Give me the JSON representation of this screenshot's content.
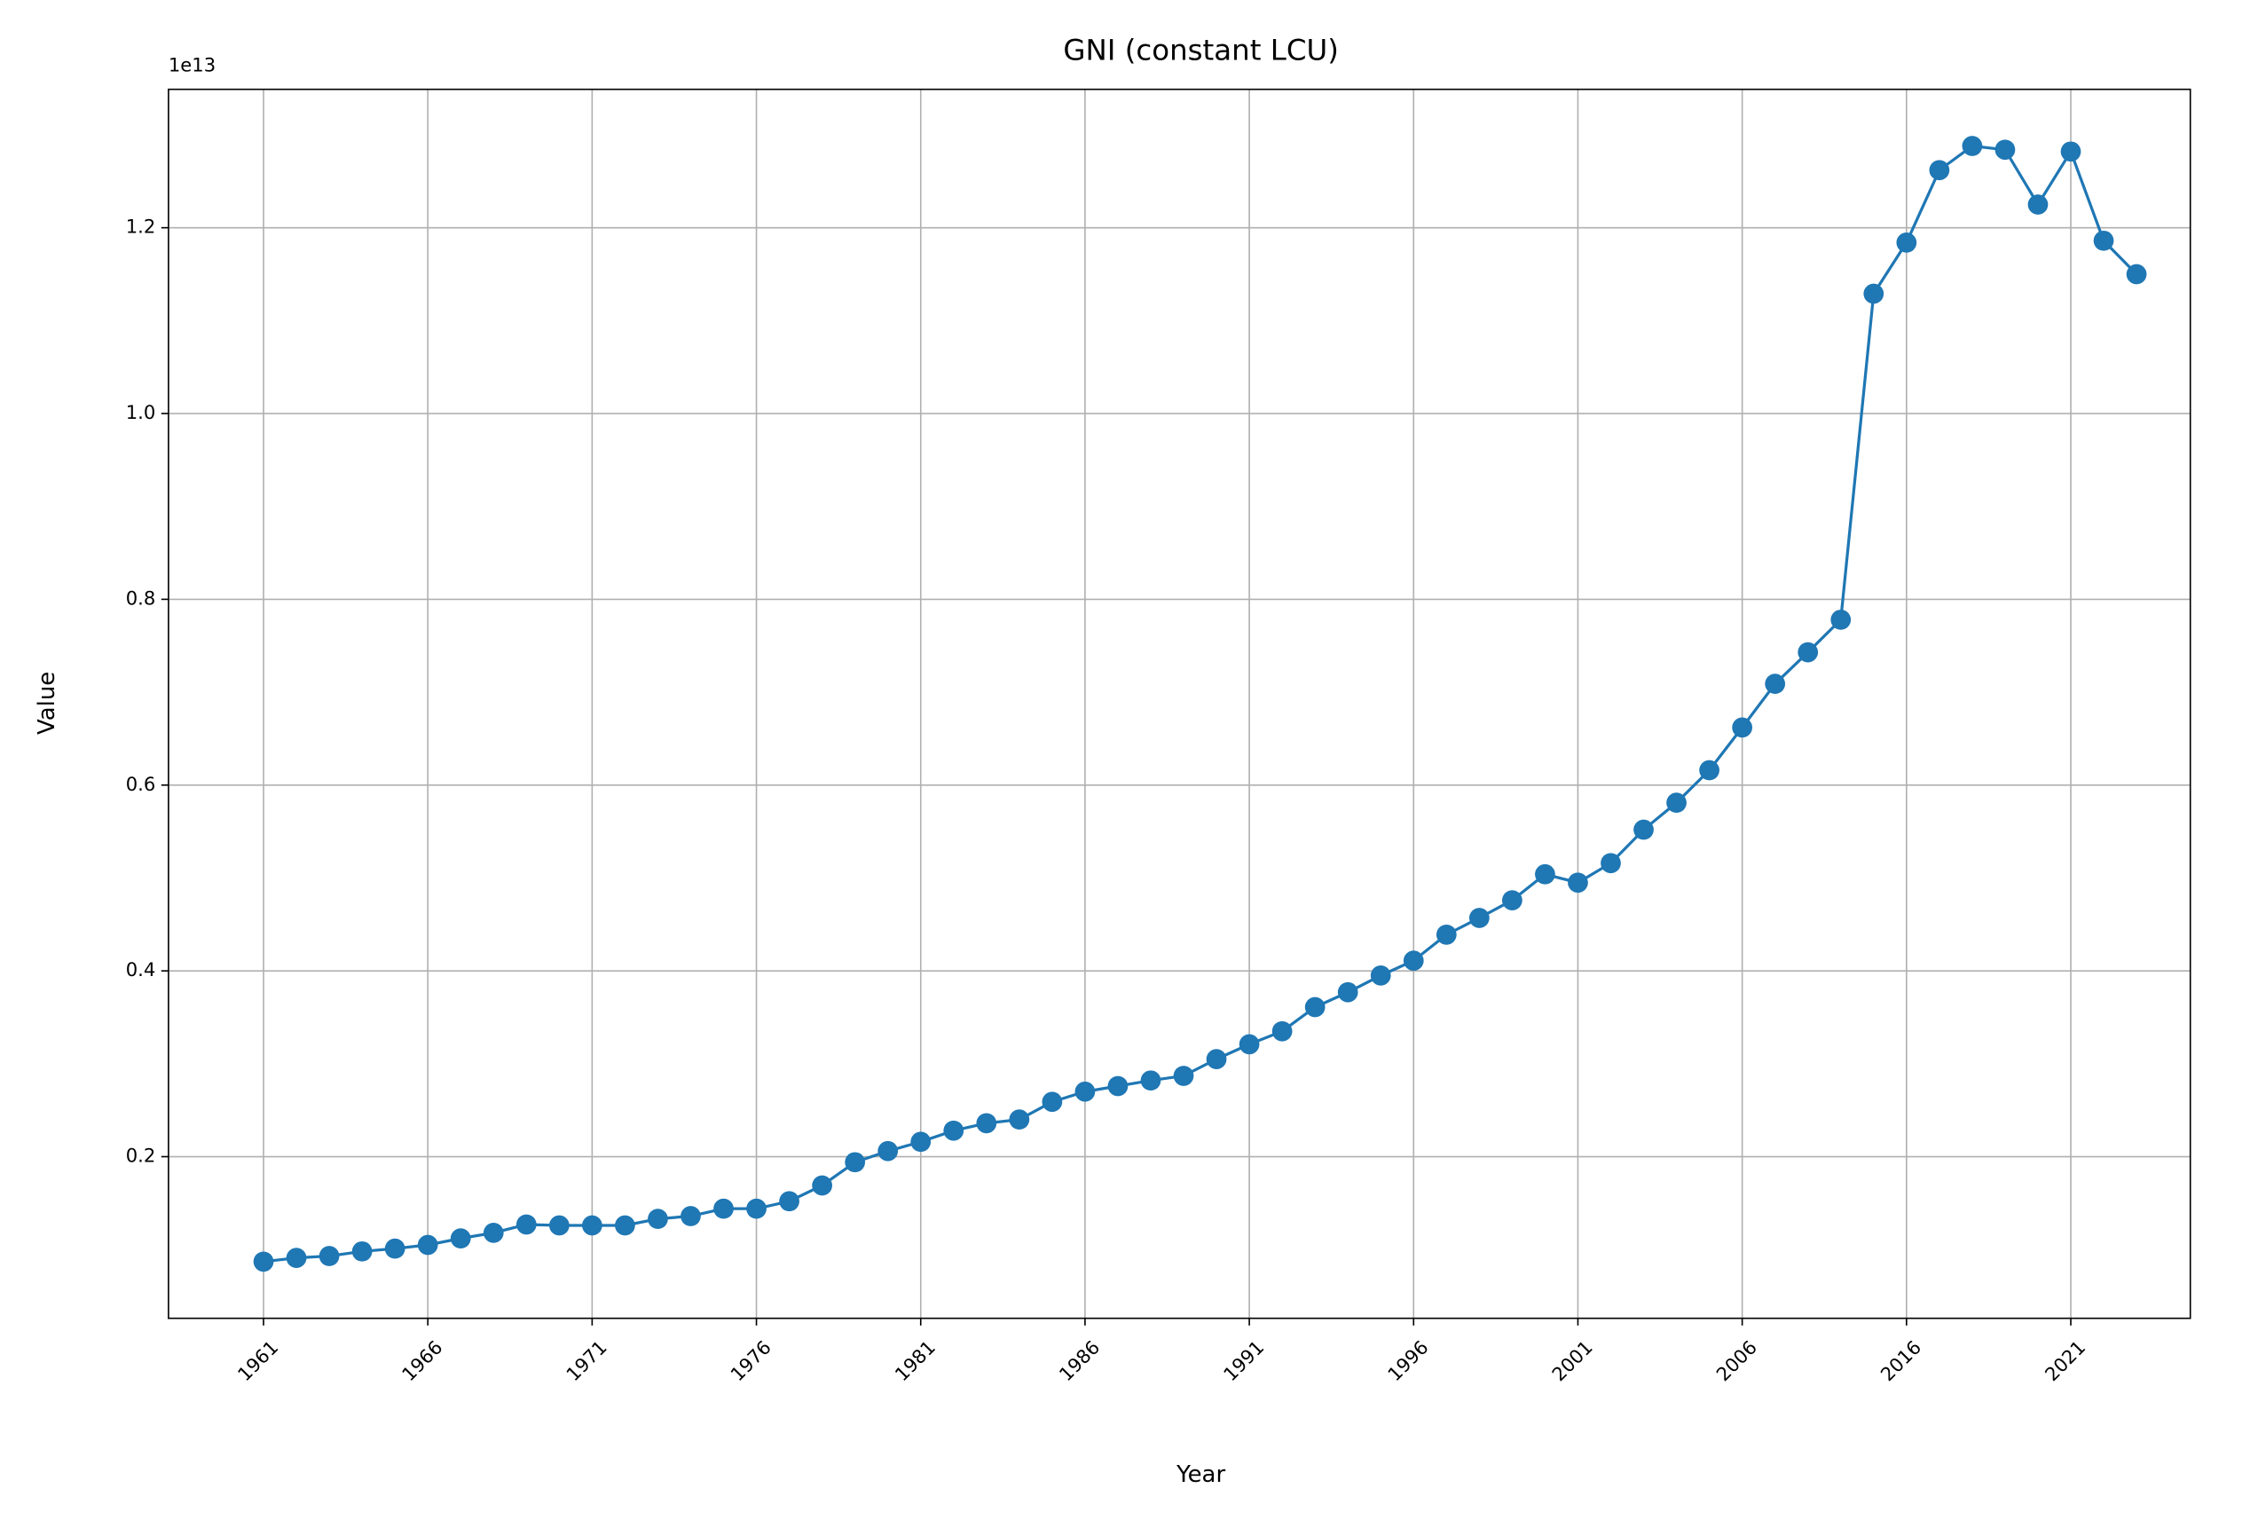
{
  "chart_data": {
    "type": "line",
    "title": "GNI (constant LCU)",
    "x_label": "Year",
    "y_label": "Value",
    "y_offset_label": "1e13",
    "categories": [
      "1961",
      null,
      null,
      null,
      null,
      "1966",
      null,
      null,
      null,
      null,
      "1971",
      null,
      null,
      null,
      null,
      "1976",
      null,
      null,
      null,
      null,
      "1981",
      null,
      null,
      null,
      null,
      "1986",
      null,
      null,
      null,
      null,
      "1991",
      null,
      null,
      null,
      null,
      "1996",
      null,
      null,
      null,
      null,
      "2001",
      null,
      null,
      null,
      null,
      "2006",
      null,
      null,
      null,
      null,
      "2016",
      null,
      null,
      null,
      null,
      "2021",
      null,
      null
    ],
    "values": [
      0.087,
      0.091,
      0.093,
      0.098,
      0.101,
      0.105,
      0.112,
      0.118,
      0.127,
      0.126,
      0.126,
      0.126,
      0.133,
      0.136,
      0.144,
      0.144,
      0.152,
      0.169,
      0.194,
      0.206,
      0.216,
      0.228,
      0.236,
      0.24,
      0.259,
      0.27,
      0.276,
      0.282,
      0.287,
      0.305,
      0.321,
      0.335,
      0.361,
      0.377,
      0.395,
      0.411,
      0.439,
      0.457,
      0.476,
      0.504,
      0.495,
      0.516,
      0.552,
      0.581,
      0.616,
      0.662,
      0.709,
      0.743,
      0.778,
      1.129,
      1.184,
      1.262,
      1.288,
      1.284,
      1.225,
      1.282,
      1.186,
      1.15
    ],
    "color": "#1f77b4",
    "ylim": [
      0.026,
      1.349
    ],
    "yticks": [
      0.2,
      0.4,
      0.6,
      0.8,
      {
        "value": 1,
        "label": "1.0"
      },
      1.2
    ],
    "grid": true
  }
}
